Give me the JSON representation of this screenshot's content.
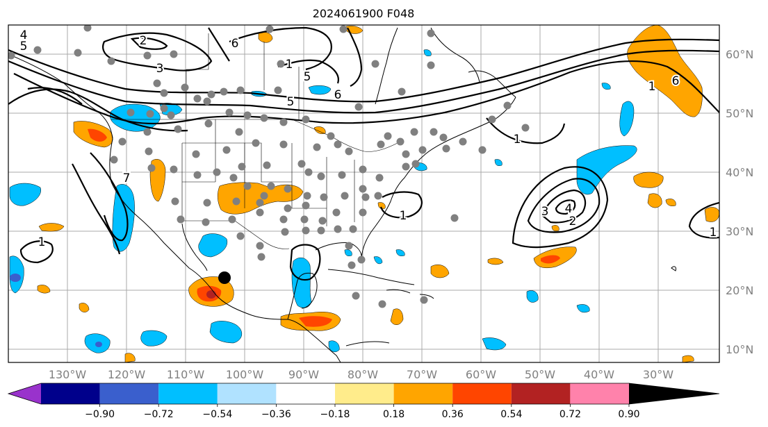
{
  "title": "2024061900 F048",
  "lat_labels": [
    "60°N",
    "50°N",
    "40°N",
    "30°N",
    "20°N",
    "10°N"
  ],
  "lon_labels": [
    "130°W",
    "120°W",
    "110°W",
    "100°W",
    "90°W",
    "80°W",
    "70°W",
    "60°W",
    "50°W",
    "40°W",
    "30°W"
  ],
  "colorbar": {
    "ticks": [
      "−0.90",
      "−0.72",
      "−0.54",
      "−0.36",
      "−0.18",
      "0.18",
      "0.36",
      "0.54",
      "0.72",
      "0.90"
    ],
    "colors": [
      "#9932cc",
      "#00008b",
      "#3a5fcd",
      "#00bfff",
      "#b0e2ff",
      "#ffffff",
      "#ffec8b",
      "#ffa500",
      "#ff4500",
      "#b22222",
      "#ff82ab"
    ]
  },
  "contour_labels": [
    "4",
    "5",
    "2",
    "6",
    "3",
    "1",
    "5",
    "6",
    "5",
    "6",
    "1",
    "1",
    "3",
    "4",
    "2",
    "1",
    "1",
    "1",
    "7"
  ],
  "map_colors": {
    "negative": "#00bfff",
    "positive": "#ffa500",
    "strong_positive": "#ff4500",
    "very_strong_positive": "#b22222",
    "station": "#808080",
    "marker": "#000000"
  }
}
